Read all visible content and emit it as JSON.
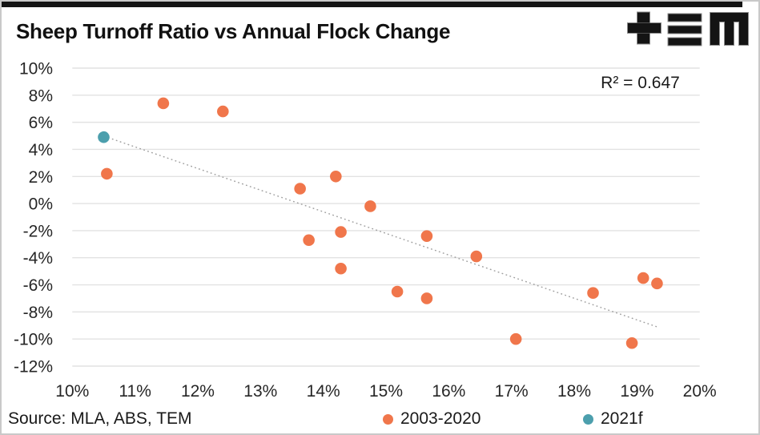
{
  "header": {
    "title": "Sheep Turnoff Ratio vs Annual Flock Change"
  },
  "logo": {
    "name": "TEM logo",
    "color": "#141414",
    "outline": "#8C8C8C"
  },
  "annotation": {
    "r2_label": "R² = 0.647"
  },
  "chart_data": {
    "type": "scatter",
    "title": "Sheep Turnoff Ratio vs Annual Flock Change",
    "xlabel": "",
    "ylabel": "",
    "xlim": [
      10,
      20
    ],
    "ylim": [
      -12,
      10
    ],
    "x_ticks": [
      "10%",
      "11%",
      "12%",
      "13%",
      "14%",
      "15%",
      "16%",
      "17%",
      "18%",
      "19%",
      "20%"
    ],
    "x_tick_values": [
      10,
      11,
      12,
      13,
      14,
      15,
      16,
      17,
      18,
      19,
      20
    ],
    "y_ticks": [
      "10%",
      "8%",
      "6%",
      "4%",
      "2%",
      "0%",
      "-2%",
      "-4%",
      "-6%",
      "-8%",
      "-10%",
      "-12%"
    ],
    "y_tick_values": [
      10,
      8,
      6,
      4,
      2,
      0,
      -2,
      -4,
      -6,
      -8,
      -10,
      -12
    ],
    "grid": "horizontal",
    "legend_position": "bottom",
    "marker_radius": 7.3,
    "series": [
      {
        "name": "2003-2020",
        "color": "#F0764B",
        "points": [
          [
            10.55,
            2.2
          ],
          [
            11.45,
            7.4
          ],
          [
            12.4,
            6.8
          ],
          [
            13.63,
            1.1
          ],
          [
            13.77,
            -2.7
          ],
          [
            14.2,
            2.0
          ],
          [
            14.28,
            -2.1
          ],
          [
            14.28,
            -4.8
          ],
          [
            14.75,
            -0.2
          ],
          [
            15.18,
            -6.5
          ],
          [
            15.65,
            -2.4
          ],
          [
            15.65,
            -7.0
          ],
          [
            16.44,
            -3.9
          ],
          [
            17.07,
            -10.0
          ],
          [
            18.3,
            -6.6
          ],
          [
            18.92,
            -10.3
          ],
          [
            19.1,
            -5.5
          ],
          [
            19.32,
            -5.9
          ]
        ]
      },
      {
        "name": "2021f",
        "color": "#4C9FAD",
        "points": [
          [
            10.5,
            4.9
          ]
        ]
      }
    ],
    "trendline": {
      "style": "dotted",
      "color": "#9E9E9E",
      "from": [
        10.57,
        4.87
      ],
      "to": [
        19.32,
        -9.1
      ]
    },
    "r2": 0.647
  },
  "legend": {
    "items": [
      {
        "label": "2003-2020",
        "color": "#F0764B"
      },
      {
        "label": "2021f",
        "color": "#4C9FAD"
      }
    ]
  },
  "footer": {
    "source": "Source: MLA, ABS, TEM"
  },
  "colors": {
    "accent_bar": "#141414",
    "gridline": "#E2E2E2",
    "trendline": "#9E9E9E",
    "border": "#C9C9C9",
    "text": "#1A1A1A"
  }
}
